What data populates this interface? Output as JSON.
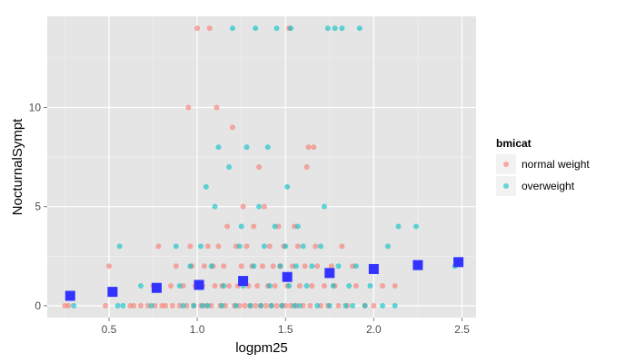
{
  "chart_data": {
    "type": "scatter",
    "title": "",
    "xlabel": "logpm25",
    "ylabel": "NocturnalSympt",
    "xlim": [
      0.15,
      2.58
    ],
    "ylim": [
      -0.6,
      14.6
    ],
    "x_ticks": [
      0.5,
      1.0,
      1.5,
      2.0,
      2.5
    ],
    "x_tick_labels": [
      "0.5",
      "1.0",
      "1.5",
      "2.0",
      "2.5"
    ],
    "y_ticks": [
      0,
      5,
      10
    ],
    "y_tick_labels": [
      "0",
      "5",
      "10"
    ],
    "grid": true,
    "legend": {
      "title": "bmicat",
      "position": "right",
      "entries": [
        {
          "label": "normal weight",
          "color": "#F8766D"
        },
        {
          "label": "overweight",
          "color": "#00BFC4"
        }
      ]
    },
    "series": [
      {
        "name": "normal weight",
        "color": "#F8766D",
        "points": [
          [
            0.25,
            0
          ],
          [
            0.27,
            0
          ],
          [
            0.48,
            0
          ],
          [
            0.5,
            2
          ],
          [
            0.62,
            0
          ],
          [
            0.64,
            0
          ],
          [
            0.68,
            0
          ],
          [
            0.72,
            0
          ],
          [
            0.75,
            1
          ],
          [
            0.76,
            0
          ],
          [
            0.78,
            3
          ],
          [
            0.8,
            0
          ],
          [
            0.82,
            0
          ],
          [
            0.85,
            1
          ],
          [
            0.86,
            0
          ],
          [
            0.88,
            2
          ],
          [
            0.9,
            0
          ],
          [
            0.92,
            1
          ],
          [
            0.94,
            0
          ],
          [
            0.95,
            10
          ],
          [
            0.96,
            3
          ],
          [
            0.97,
            2
          ],
          [
            0.98,
            0
          ],
          [
            0.99,
            1
          ],
          [
            1.0,
            14
          ],
          [
            1.02,
            0
          ],
          [
            1.03,
            1
          ],
          [
            1.04,
            2
          ],
          [
            1.05,
            0
          ],
          [
            1.06,
            3
          ],
          [
            1.07,
            14
          ],
          [
            1.08,
            0
          ],
          [
            1.09,
            2
          ],
          [
            1.1,
            1
          ],
          [
            1.11,
            10
          ],
          [
            1.12,
            3
          ],
          [
            1.13,
            0
          ],
          [
            1.14,
            1
          ],
          [
            1.15,
            2
          ],
          [
            1.16,
            0
          ],
          [
            1.17,
            4
          ],
          [
            1.18,
            1
          ],
          [
            1.2,
            9
          ],
          [
            1.21,
            0
          ],
          [
            1.22,
            3
          ],
          [
            1.23,
            1
          ],
          [
            1.24,
            0
          ],
          [
            1.25,
            2
          ],
          [
            1.26,
            5
          ],
          [
            1.27,
            0
          ],
          [
            1.28,
            3
          ],
          [
            1.29,
            1
          ],
          [
            1.3,
            0
          ],
          [
            1.31,
            2
          ],
          [
            1.32,
            4
          ],
          [
            1.33,
            0
          ],
          [
            1.34,
            1
          ],
          [
            1.35,
            7
          ],
          [
            1.36,
            0
          ],
          [
            1.37,
            2
          ],
          [
            1.38,
            5
          ],
          [
            1.39,
            0
          ],
          [
            1.4,
            1
          ],
          [
            1.41,
            3
          ],
          [
            1.42,
            0
          ],
          [
            1.43,
            2
          ],
          [
            1.44,
            1
          ],
          [
            1.45,
            0
          ],
          [
            1.46,
            4
          ],
          [
            1.47,
            2
          ],
          [
            1.48,
            0
          ],
          [
            1.49,
            3
          ],
          [
            1.5,
            0
          ],
          [
            1.51,
            1
          ],
          [
            1.52,
            14
          ],
          [
            1.53,
            0
          ],
          [
            1.54,
            2
          ],
          [
            1.55,
            4
          ],
          [
            1.56,
            0
          ],
          [
            1.57,
            3
          ],
          [
            1.58,
            1
          ],
          [
            1.6,
            0
          ],
          [
            1.61,
            2
          ],
          [
            1.62,
            7
          ],
          [
            1.63,
            8
          ],
          [
            1.64,
            0
          ],
          [
            1.65,
            1
          ],
          [
            1.66,
            8
          ],
          [
            1.67,
            3
          ],
          [
            1.68,
            2
          ],
          [
            1.7,
            0
          ],
          [
            1.72,
            1
          ],
          [
            1.74,
            0
          ],
          [
            1.76,
            2
          ],
          [
            1.78,
            1
          ],
          [
            1.8,
            0
          ],
          [
            1.82,
            3
          ],
          [
            1.85,
            0
          ],
          [
            1.88,
            2
          ],
          [
            1.9,
            1
          ],
          [
            1.95,
            0
          ],
          [
            2.0,
            0
          ],
          [
            2.05,
            1
          ],
          [
            2.12,
            1
          ]
        ]
      },
      {
        "name": "overweight",
        "color": "#00BFC4",
        "points": [
          [
            0.3,
            0
          ],
          [
            0.55,
            0
          ],
          [
            0.56,
            3
          ],
          [
            0.58,
            0
          ],
          [
            0.68,
            1
          ],
          [
            0.74,
            0
          ],
          [
            0.88,
            3
          ],
          [
            0.9,
            1
          ],
          [
            0.92,
            0
          ],
          [
            0.96,
            2
          ],
          [
            0.98,
            0
          ],
          [
            1.0,
            1
          ],
          [
            1.02,
            3
          ],
          [
            1.03,
            0
          ],
          [
            1.05,
            6
          ],
          [
            1.06,
            0
          ],
          [
            1.08,
            2
          ],
          [
            1.1,
            5
          ],
          [
            1.12,
            8
          ],
          [
            1.14,
            0
          ],
          [
            1.15,
            1
          ],
          [
            1.18,
            7
          ],
          [
            1.2,
            14
          ],
          [
            1.22,
            0
          ],
          [
            1.24,
            3
          ],
          [
            1.25,
            4
          ],
          [
            1.26,
            1
          ],
          [
            1.28,
            8
          ],
          [
            1.3,
            0
          ],
          [
            1.32,
            2
          ],
          [
            1.33,
            14
          ],
          [
            1.35,
            5
          ],
          [
            1.36,
            0
          ],
          [
            1.38,
            3
          ],
          [
            1.4,
            8
          ],
          [
            1.41,
            1
          ],
          [
            1.42,
            0
          ],
          [
            1.44,
            4
          ],
          [
            1.45,
            14
          ],
          [
            1.47,
            2
          ],
          [
            1.48,
            0
          ],
          [
            1.5,
            3
          ],
          [
            1.51,
            6
          ],
          [
            1.52,
            1
          ],
          [
            1.53,
            14
          ],
          [
            1.55,
            0
          ],
          [
            1.56,
            2
          ],
          [
            1.57,
            4
          ],
          [
            1.58,
            0
          ],
          [
            1.6,
            3
          ],
          [
            1.62,
            1
          ],
          [
            1.65,
            2
          ],
          [
            1.68,
            0
          ],
          [
            1.7,
            3
          ],
          [
            1.72,
            5
          ],
          [
            1.74,
            14
          ],
          [
            1.75,
            0
          ],
          [
            1.77,
            1
          ],
          [
            1.78,
            14
          ],
          [
            1.8,
            2
          ],
          [
            1.82,
            14
          ],
          [
            1.84,
            0
          ],
          [
            1.86,
            1
          ],
          [
            1.88,
            0
          ],
          [
            1.9,
            2
          ],
          [
            1.92,
            14
          ],
          [
            1.95,
            0
          ],
          [
            1.98,
            1
          ],
          [
            2.05,
            0
          ],
          [
            2.08,
            3
          ],
          [
            2.12,
            0
          ],
          [
            2.14,
            4
          ],
          [
            2.24,
            4
          ],
          [
            2.46,
            2
          ]
        ]
      }
    ],
    "trend": {
      "color": "#3333ff",
      "points": [
        [
          0.28,
          0.5
        ],
        [
          0.52,
          0.7
        ],
        [
          0.77,
          0.9
        ],
        [
          1.01,
          1.05
        ],
        [
          1.26,
          1.25
        ],
        [
          1.51,
          1.45
        ],
        [
          1.75,
          1.65
        ],
        [
          2.0,
          1.85
        ],
        [
          2.25,
          2.05
        ],
        [
          2.48,
          2.2
        ]
      ]
    }
  }
}
